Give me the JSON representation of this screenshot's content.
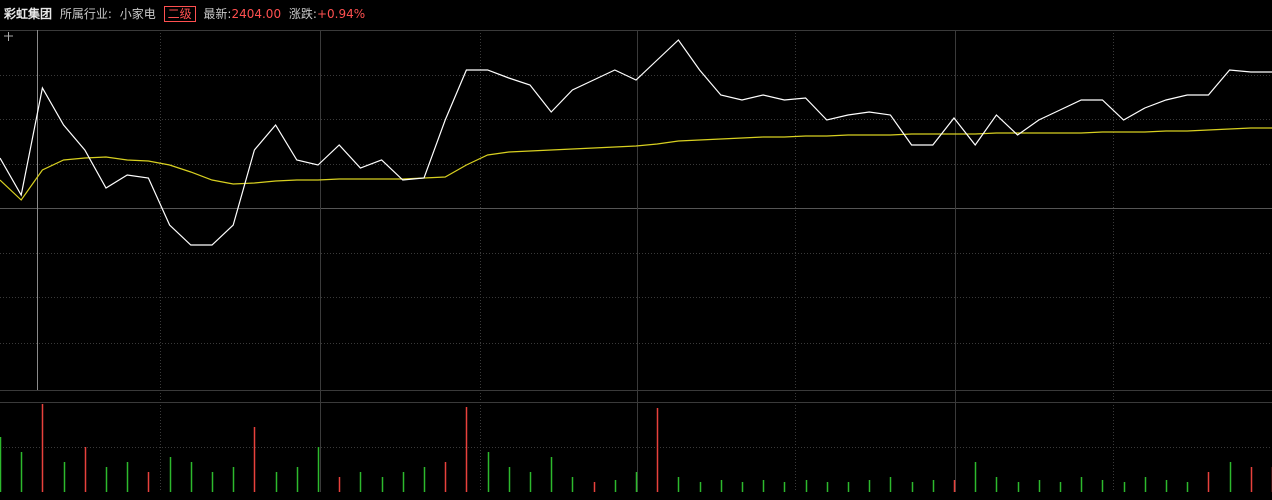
{
  "header": {
    "name": "彩虹集团",
    "industry_label": "所属行业:",
    "industry": "小家电",
    "level": "二级",
    "latest_label": "最新:",
    "latest": "2404.00",
    "change_label": "涨跌:",
    "change": "+0.94%"
  },
  "chart_data": {
    "type": "line",
    "x": [
      0,
      4,
      8,
      12,
      16,
      20,
      24,
      28,
      32,
      36,
      40,
      44,
      48,
      52,
      56,
      60,
      64,
      68,
      72,
      76,
      80,
      84,
      88,
      92,
      96,
      100,
      104,
      108,
      112,
      116,
      120,
      124,
      128,
      132,
      136,
      140,
      144,
      148,
      152,
      156,
      160,
      164,
      168,
      172,
      176,
      180,
      184,
      188,
      192,
      196,
      200,
      204,
      208,
      212,
      216,
      220,
      224,
      228,
      232,
      236,
      240
    ],
    "xlim": [
      0,
      240
    ],
    "ylim": [
      0,
      360
    ],
    "series": [
      {
        "name": "price",
        "color": "#ffffff",
        "values": [
          232,
          195,
          302,
          265,
          240,
          202,
          215,
          212,
          165,
          145,
          145,
          165,
          240,
          265,
          230,
          225,
          245,
          222,
          230,
          210,
          212,
          270,
          320,
          320,
          312,
          305,
          278,
          300,
          310,
          320,
          310,
          330,
          350,
          320,
          295,
          290,
          295,
          290,
          292,
          270,
          275,
          278,
          275,
          245,
          245,
          272,
          245,
          275,
          255,
          270,
          280,
          290,
          290,
          270,
          282,
          290,
          295,
          295,
          320,
          318,
          318
        ]
      },
      {
        "name": "average",
        "color": "#d8d020",
        "values": [
          210,
          190,
          220,
          230,
          232,
          233,
          230,
          229,
          225,
          218,
          210,
          206,
          207,
          209,
          210,
          210,
          211,
          211,
          211,
          211,
          212,
          213,
          225,
          235,
          238,
          239,
          240,
          241,
          242,
          243,
          244,
          246,
          249,
          250,
          251,
          252,
          253,
          253,
          254,
          254,
          255,
          255,
          255,
          256,
          256,
          256,
          256,
          257,
          257,
          257,
          257,
          257,
          258,
          258,
          258,
          259,
          259,
          260,
          261,
          262,
          262
        ]
      }
    ],
    "volume": {
      "ylim": [
        0,
        90
      ],
      "values": [
        55,
        40,
        88,
        30,
        45,
        25,
        30,
        20,
        35,
        30,
        20,
        25,
        65,
        20,
        25,
        45,
        15,
        20,
        15,
        20,
        25,
        30,
        85,
        40,
        25,
        20,
        35,
        15,
        10,
        12,
        20,
        84,
        15,
        10,
        12,
        10,
        12,
        10,
        12,
        10,
        10,
        12,
        15,
        10,
        12,
        12,
        30,
        15,
        10,
        12,
        10,
        15,
        12,
        10,
        15,
        12,
        10,
        20,
        30,
        25,
        25
      ],
      "colors": [
        "#2db92d",
        "#2db92d",
        "#e8413c",
        "#2db92d",
        "#e8413c",
        "#2db92d",
        "#2db92d",
        "#e8413c",
        "#2db92d",
        "#2db92d",
        "#2db92d",
        "#2db92d",
        "#e8413c",
        "#2db92d",
        "#2db92d",
        "#2db92d",
        "#e8413c",
        "#2db92d",
        "#2db92d",
        "#2db92d",
        "#2db92d",
        "#e8413c",
        "#e8413c",
        "#2db92d",
        "#2db92d",
        "#2db92d",
        "#2db92d",
        "#2db92d",
        "#e8413c",
        "#2db92d",
        "#2db92d",
        "#e8413c",
        "#2db92d",
        "#2db92d",
        "#2db92d",
        "#2db92d",
        "#2db92d",
        "#2db92d",
        "#2db92d",
        "#2db92d",
        "#2db92d",
        "#2db92d",
        "#2db92d",
        "#2db92d",
        "#2db92d",
        "#e8413c",
        "#2db92d",
        "#2db92d",
        "#2db92d",
        "#2db92d",
        "#2db92d",
        "#2db92d",
        "#2db92d",
        "#2db92d",
        "#2db92d",
        "#2db92d",
        "#2db92d",
        "#e8413c",
        "#2db92d",
        "#e8413c",
        "#e8413c"
      ]
    }
  }
}
